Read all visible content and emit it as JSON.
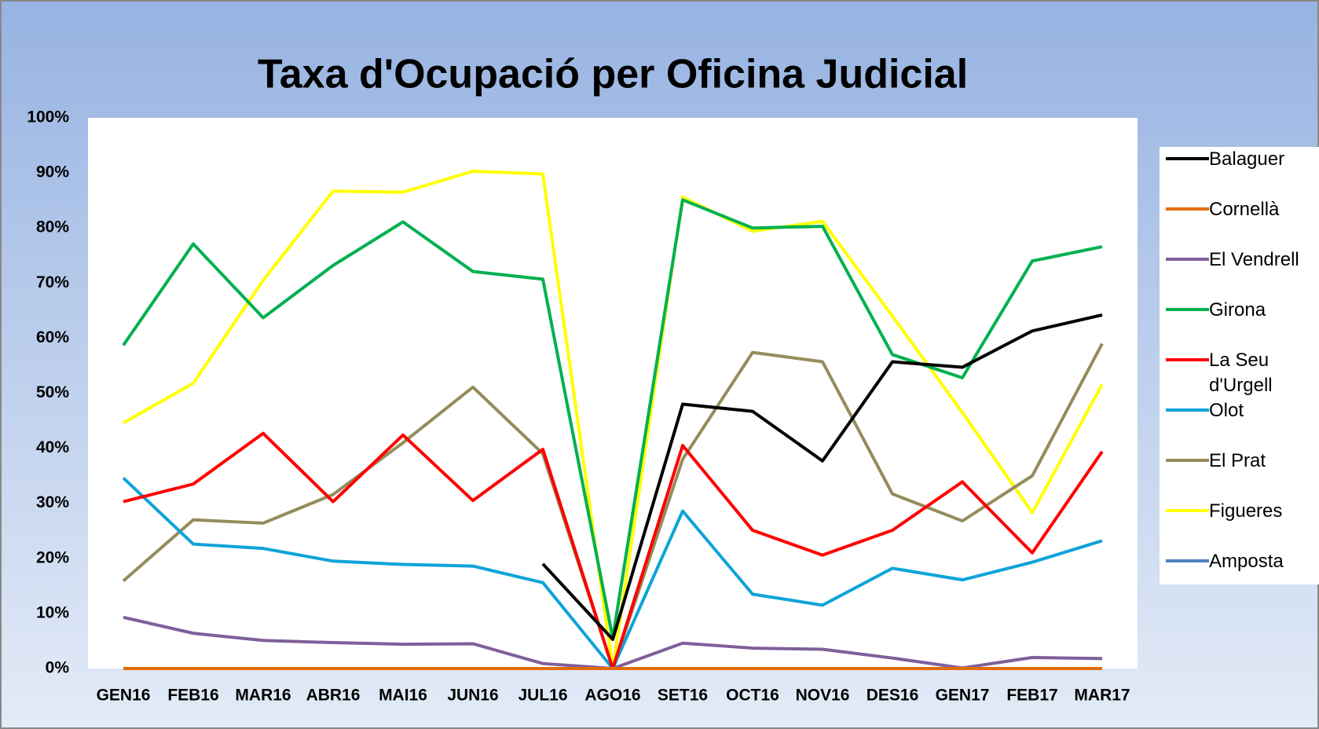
{
  "chart_data": {
    "type": "line",
    "title": "Taxa d'Ocupació per Oficina Judicial",
    "categories": [
      "GEN16",
      "FEB16",
      "MAR16",
      "ABR16",
      "MAI16",
      "JUN16",
      "JUL16",
      "AGO16",
      "SET16",
      "OCT16",
      "NOV16",
      "DES16",
      "GEN17",
      "FEB17",
      "MAR17"
    ],
    "ylim": [
      0,
      100
    ],
    "yticks": [
      {
        "value": 0,
        "label": "0%"
      },
      {
        "value": 10,
        "label": "10%"
      },
      {
        "value": 20,
        "label": "20%"
      },
      {
        "value": 30,
        "label": "30%"
      },
      {
        "value": 40,
        "label": "40%"
      },
      {
        "value": 50,
        "label": "50%"
      },
      {
        "value": 60,
        "label": "60%"
      },
      {
        "value": 70,
        "label": "70%"
      },
      {
        "value": 80,
        "label": "80%"
      },
      {
        "value": 90,
        "label": "90%"
      },
      {
        "value": 100,
        "label": "100%"
      }
    ],
    "grid": false,
    "legend": "right",
    "series": [
      {
        "name": "Balaguer",
        "color": "#000000",
        "values": [
          null,
          null,
          null,
          null,
          null,
          null,
          19,
          5.3,
          48,
          46.7,
          37.7,
          55.7,
          54.7,
          61.3,
          64.2
        ]
      },
      {
        "name": "Cornellà",
        "color": "#e36c0a",
        "values": [
          0,
          0,
          0,
          0,
          0,
          0,
          0,
          0,
          0,
          0,
          0,
          0,
          0,
          0,
          0
        ]
      },
      {
        "name": "El Vendrell",
        "color": "#7f5f9b",
        "values": [
          9.3,
          6.4,
          5.1,
          4.7,
          4.4,
          4.5,
          0.9,
          0,
          4.6,
          3.7,
          3.5,
          1.9,
          0.1,
          2.0,
          1.8
        ]
      },
      {
        "name": "Girona",
        "color": "#00b050",
        "values": [
          58.7,
          77.1,
          63.7,
          73.2,
          81.1,
          72.1,
          70.7,
          5.5,
          85.1,
          80.0,
          80.3,
          57.0,
          52.8,
          74.0,
          76.6
        ]
      },
      {
        "name": "La Seu d'Urgell",
        "color": "#ff0000",
        "values": [
          30.3,
          33.5,
          42.7,
          30.3,
          42.4,
          30.5,
          39.8,
          0,
          40.5,
          25.1,
          20.6,
          25.1,
          33.9,
          21.0,
          39.4
        ]
      },
      {
        "name": "Olot",
        "color": "#0ea3d8",
        "values": [
          34.6,
          22.6,
          21.8,
          19.5,
          18.9,
          18.6,
          15.6,
          0,
          28.6,
          13.5,
          11.5,
          18.2,
          16.1,
          19.3,
          23.2
        ]
      },
      {
        "name": "El Prat",
        "color": "#958c5c",
        "values": [
          15.9,
          27.0,
          26.4,
          31.6,
          41.0,
          51.1,
          39.0,
          0,
          38.0,
          57.4,
          55.7,
          31.7,
          26.8,
          35.0,
          59.0
        ]
      },
      {
        "name": "Figueres",
        "color": "#ffff00",
        "values": [
          44.6,
          51.8,
          70.5,
          86.7,
          86.5,
          90.3,
          89.8,
          0,
          85.6,
          79.4,
          81.2,
          64.0,
          46.5,
          28.3,
          51.6
        ]
      },
      {
        "name": "Amposta",
        "color": "#4f81bd",
        "values": [
          0,
          0,
          0,
          0,
          0,
          0,
          0,
          0,
          0,
          0,
          0,
          0,
          0,
          0,
          0
        ]
      }
    ]
  }
}
